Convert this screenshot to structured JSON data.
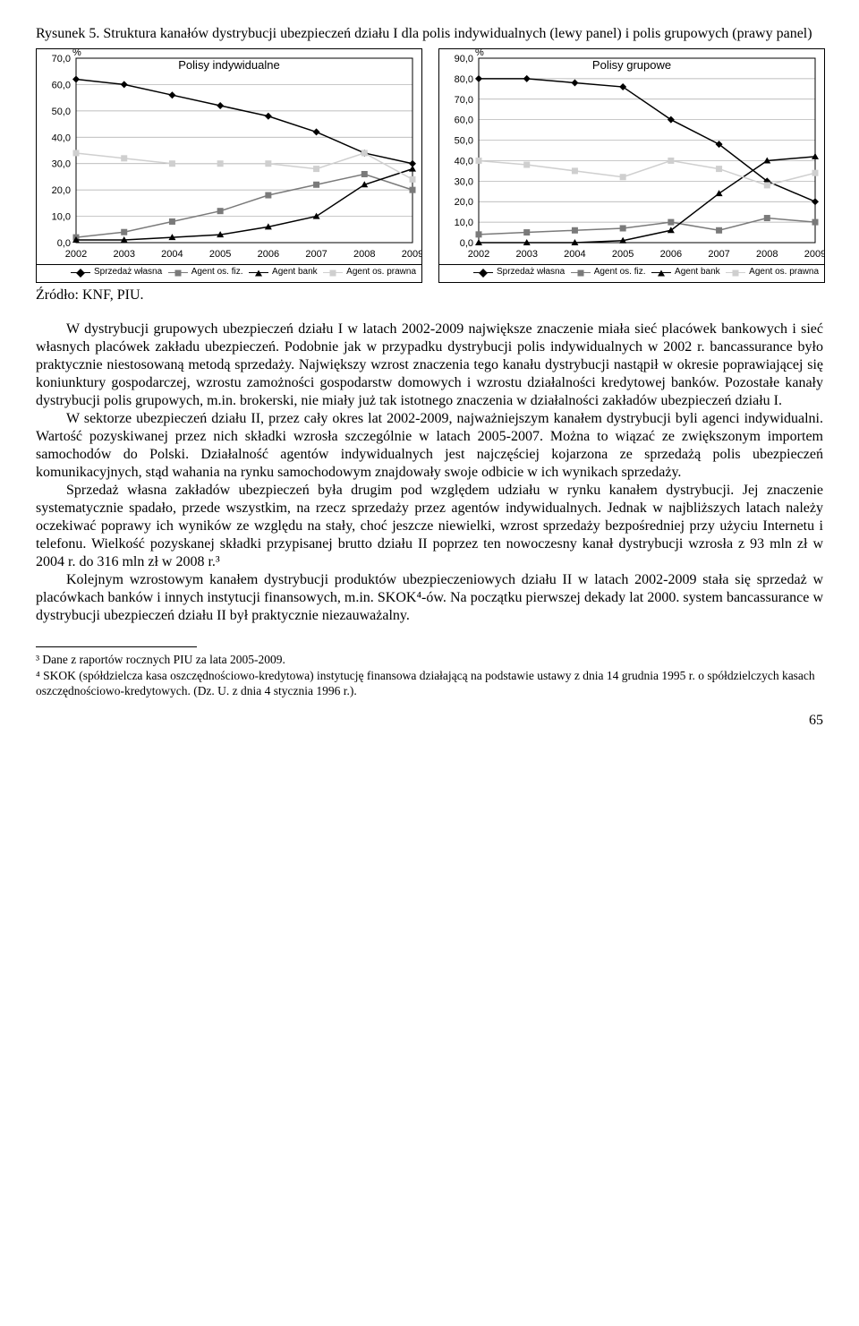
{
  "figure": {
    "caption": "Rysunek 5. Struktura kanałów dystrybucji ubezpieczeń działu I dla polis indywidualnych (lewy panel) i polis grupowych (prawy panel)",
    "source": "Źródło: KNF, PIU.",
    "y_unit": "%",
    "categories": [
      "2002",
      "2003",
      "2004",
      "2005",
      "2006",
      "2007",
      "2008",
      "2009"
    ],
    "series_names": [
      "Sprzedaż własna",
      "Agent os. fiz.",
      "Agent bank",
      "Agent os. prawna"
    ],
    "series_colors": [
      "#000000",
      "#7a7a7a",
      "#000000",
      "#cfcfcf"
    ],
    "marker_types": [
      "diamond",
      "square",
      "triangle",
      "square"
    ],
    "left": {
      "title": "Polisy indywidualne",
      "ylim": [
        0,
        70
      ],
      "ytick_step": 10,
      "grid_color": "#a8a8a8",
      "background_color": "#ffffff",
      "series": [
        {
          "name": "Sprzedaż własna",
          "values": [
            62,
            60,
            56,
            52,
            48,
            42,
            34,
            30
          ]
        },
        {
          "name": "Agent os. fiz.",
          "values": [
            2,
            4,
            8,
            12,
            18,
            22,
            26,
            20
          ]
        },
        {
          "name": "Agent bank",
          "values": [
            1,
            1,
            2,
            3,
            6,
            10,
            22,
            28
          ]
        },
        {
          "name": "Agent os. prawna",
          "values": [
            34,
            32,
            30,
            30,
            30,
            28,
            34,
            24
          ]
        }
      ]
    },
    "right": {
      "title": "Polisy grupowe",
      "ylim": [
        0,
        90
      ],
      "ytick_step": 10,
      "grid_color": "#a8a8a8",
      "background_color": "#ffffff",
      "series": [
        {
          "name": "Sprzedaż własna",
          "values": [
            80,
            80,
            78,
            76,
            60,
            48,
            30,
            20
          ]
        },
        {
          "name": "Agent os. fiz.",
          "values": [
            4,
            5,
            6,
            7,
            10,
            6,
            12,
            10
          ]
        },
        {
          "name": "Agent bank",
          "values": [
            0,
            0,
            0,
            1,
            6,
            24,
            40,
            42
          ]
        },
        {
          "name": "Agent os. prawna",
          "values": [
            40,
            38,
            35,
            32,
            40,
            36,
            28,
            34
          ]
        }
      ]
    }
  },
  "paragraphs": {
    "p1": "W dystrybucji grupowych ubezpieczeń działu I w latach 2002-2009 największe znaczenie miała sieć placówek bankowych i sieć własnych placówek zakładu ubezpieczeń. Podobnie jak w przypadku dystrybucji polis indywidualnych w 2002 r. bancassurance było praktycznie niestosowaną metodą sprzedaży. Największy wzrost znaczenia tego kanału dystrybucji nastąpił w okresie poprawiającej się koniunktury gospodarczej, wzrostu zamożności gospodarstw domowych i wzrostu działalności kredytowej banków. Pozostałe kanały dystrybucji polis grupowych, m.in. brokerski, nie miały już tak istotnego znaczenia w działalności zakładów ubezpieczeń działu I.",
    "p2": "W sektorze ubezpieczeń działu II, przez cały okres lat 2002-2009, najważniejszym kanałem dystrybucji byli agenci indywidualni. Wartość pozyskiwanej przez nich składki wzrosła szczególnie w latach 2005-2007. Można to wiązać ze zwiększonym importem samochodów do Polski. Działalność agentów indywidualnych jest najczęściej kojarzona ze sprzedażą polis ubezpieczeń komunikacyjnych, stąd wahania na rynku samochodowym znajdowały swoje odbicie w ich wynikach sprzedaży.",
    "p3": "Sprzedaż własna zakładów ubezpieczeń była drugim pod względem udziału w rynku kanałem dystrybucji. Jej znaczenie systematycznie spadało, przede wszystkim, na rzecz sprzedaży przez agentów indywidualnych. Jednak w najbliższych latach należy oczekiwać poprawy ich wyników ze względu na stały, choć jeszcze niewielki, wzrost sprzedaży bezpośredniej przy użyciu Internetu i telefonu. Wielkość pozyskanej składki przypisanej brutto działu II poprzez ten nowoczesny kanał dystrybucji wzrosła z 93 mln zł w 2004 r. do 316 mln zł w 2008 r.³",
    "p4": "Kolejnym wzrostowym kanałem dystrybucji produktów ubezpieczeniowych działu II w latach 2002-2009 stała się sprzedaż w placówkach banków i innych instytucji finansowych, m.in. SKOK⁴-ów. Na początku pierwszej dekady lat 2000. system bancassurance w dystrybucji ubezpieczeń działu II był praktycznie niezauważalny."
  },
  "footnotes": {
    "f3": "³ Dane z raportów rocznych PIU za lata 2005-2009.",
    "f4": "⁴ SKOK (spółdzielcza kasa oszczędnościowo-kredytowa) instytucję finansowa działającą na podstawie ustawy z dnia 14 grudnia 1995 r. o spółdzielczych kasach oszczędnościowo-kredytowych. (Dz. U. z dnia 4 stycznia 1996 r.)."
  },
  "pagenum": "65"
}
